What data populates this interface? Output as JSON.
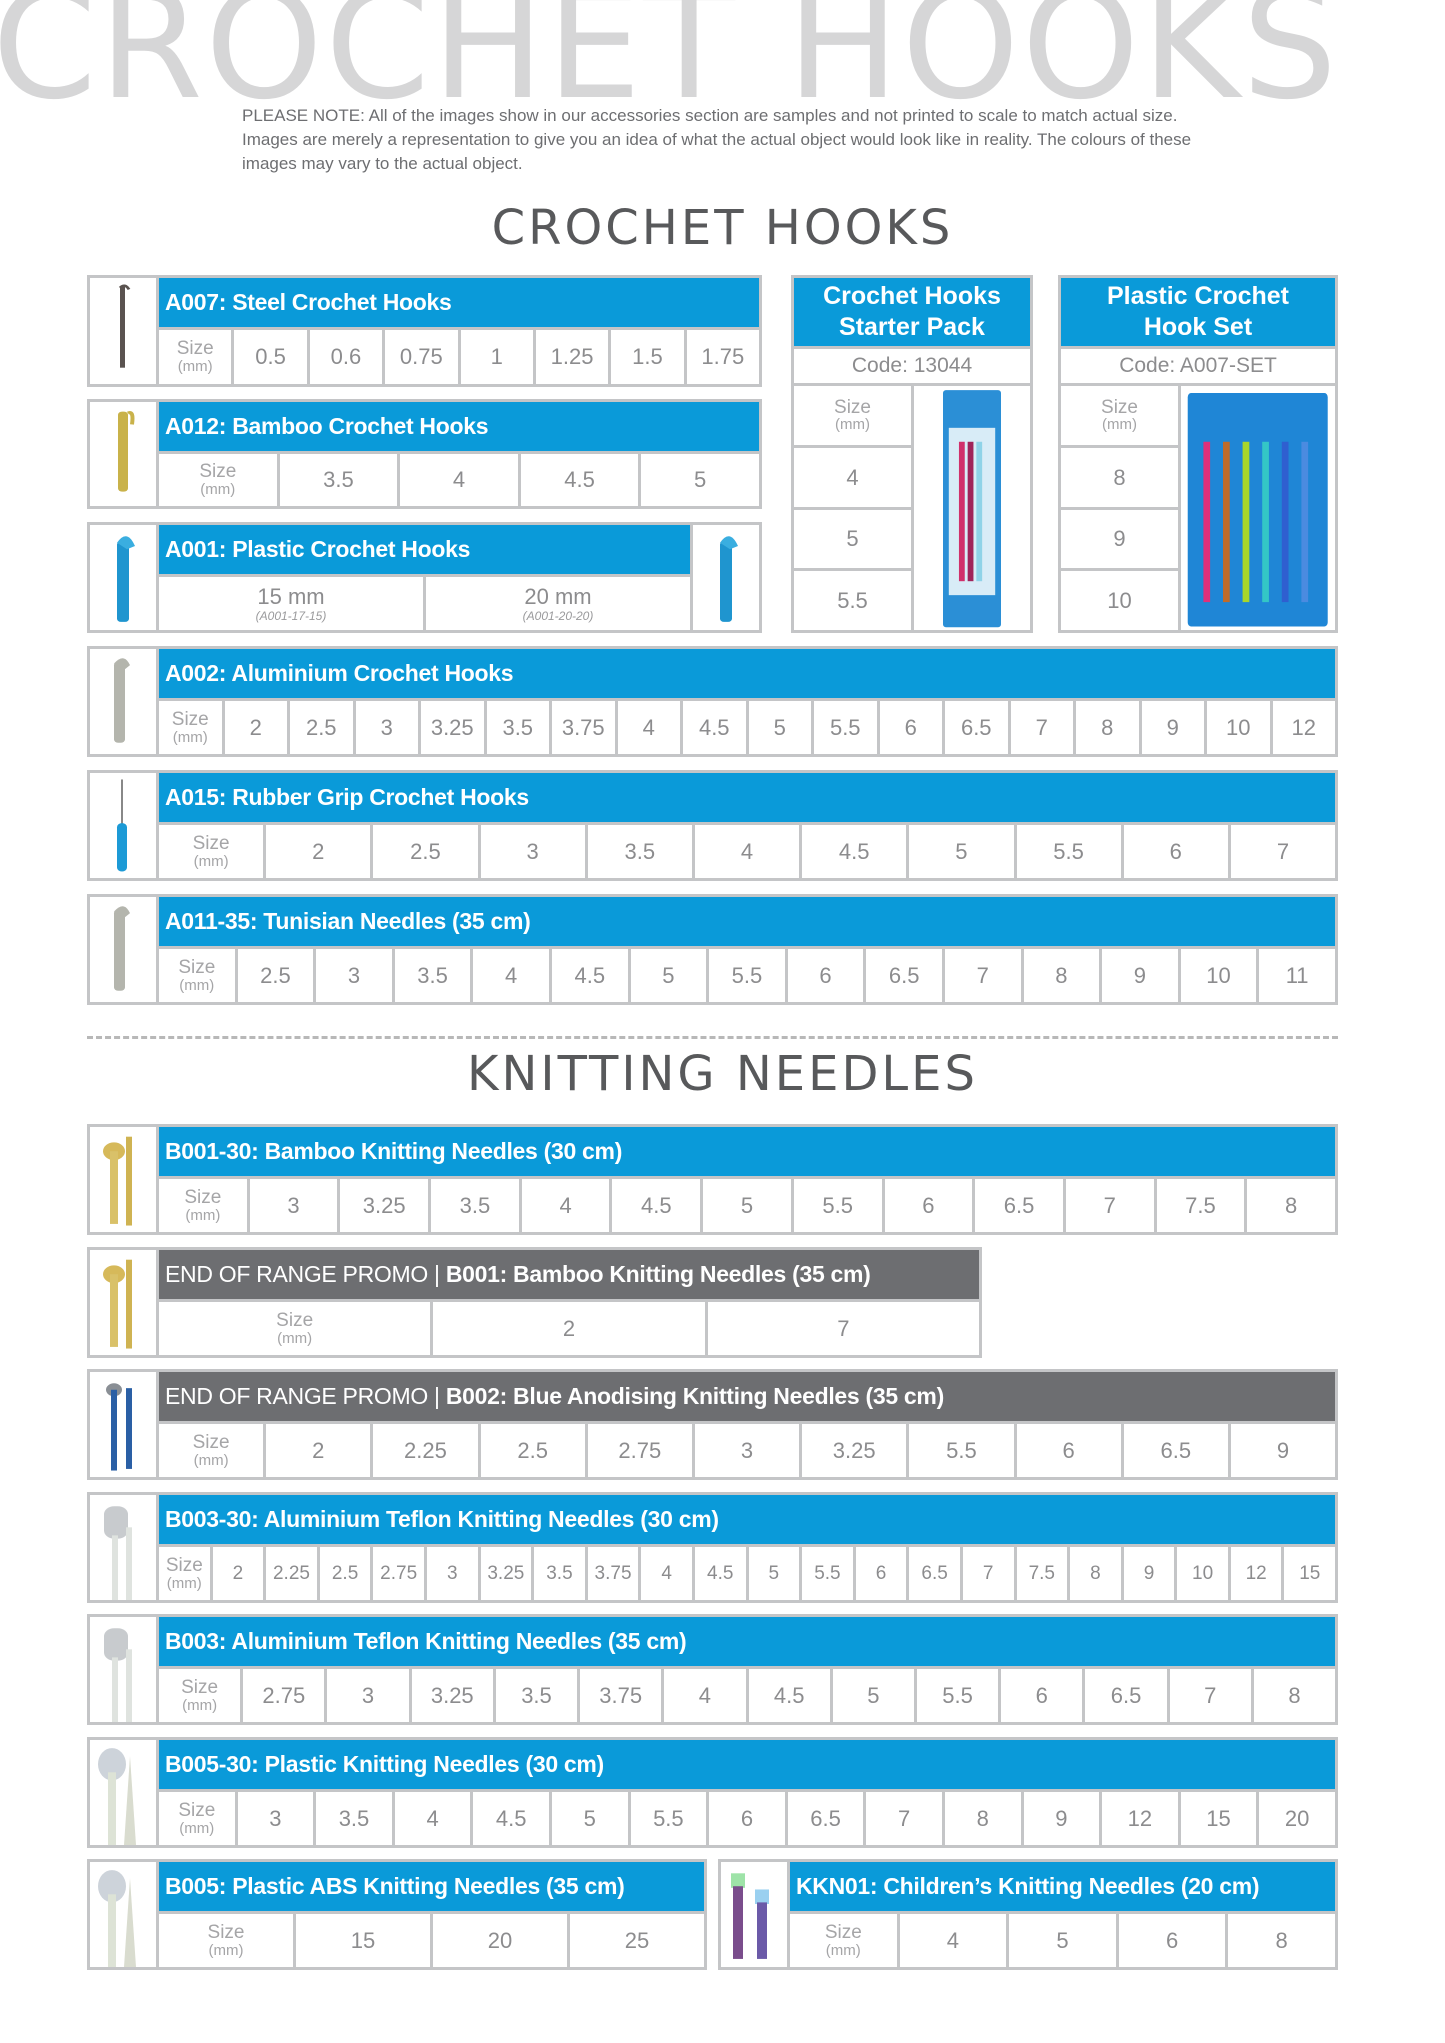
{
  "watermark": "CROCHET HOOKS",
  "note": "PLEASE NOTE: All of the images show in our accessories section are samples and not printed to scale to match actual size. Images are merely a representation to give you an idea of what the actual object would look like in reality. The colours of these images may vary to the actual object.",
  "crochet_title": "CROCHET HOOKS",
  "knitting_title": "KNITTING NEEDLES",
  "size_label": "Size",
  "unit_label": "(mm)",
  "colors": {
    "header_blue": "#0a9ad9",
    "promo_grey": "#6d6e71",
    "border": "#c4c5c7",
    "text_grey": "#8c8c8e"
  },
  "panels": [
    {
      "title": "A007: Steel Crochet Hooks",
      "image": "steel-crochet-hook-icon",
      "sizes": [
        "0.5",
        "0.6",
        "0.75",
        "1",
        "1.25",
        "1.5",
        "1.75"
      ]
    },
    {
      "title": "A012: Bamboo Crochet Hooks",
      "image": "bamboo-crochet-hook-icon",
      "sizes": [
        "3.5",
        "4",
        "4.5",
        "5"
      ]
    },
    {
      "title": "A001: Plastic Crochet Hooks",
      "image": "plastic-crochet-hook-icon",
      "options": [
        {
          "size": "15 mm",
          "code": "(A001-17-15)"
        },
        {
          "size": "20 mm",
          "code": "(A001-20-20)"
        }
      ]
    },
    {
      "title": "A002: Aluminium Crochet Hooks",
      "image": "aluminium-crochet-hook-icon",
      "sizes": [
        "2",
        "2.5",
        "3",
        "3.25",
        "3.5",
        "3.75",
        "4",
        "4.5",
        "5",
        "5.5",
        "6",
        "6.5",
        "7",
        "8",
        "9",
        "10",
        "12"
      ]
    },
    {
      "title": "A015: Rubber Grip Crochet Hooks",
      "image": "rubber-grip-crochet-hook-icon",
      "sizes": [
        "2",
        "2.5",
        "3",
        "3.5",
        "4",
        "4.5",
        "5",
        "5.5",
        "6",
        "7"
      ]
    },
    {
      "title": "A011-35: Tunisian Needles (35 cm)",
      "image": "tunisian-needle-icon",
      "sizes": [
        "2.5",
        "3",
        "3.5",
        "4",
        "4.5",
        "5",
        "5.5",
        "6",
        "6.5",
        "7",
        "8",
        "9",
        "10",
        "11"
      ]
    },
    {
      "title": "B001-30: Bamboo Knitting Needles (30 cm)",
      "image": "bamboo-knitting-needle-icon",
      "sizes": [
        "3",
        "3.25",
        "3.5",
        "4",
        "4.5",
        "5",
        "5.5",
        "6",
        "6.5",
        "7",
        "7.5",
        "8"
      ]
    },
    {
      "promo": "END OF RANGE PROMO | ",
      "title": "B001: Bamboo Knitting Needles (35 cm)",
      "image": "bamboo-knitting-needle-icon",
      "sizes": [
        "2",
        "7"
      ]
    },
    {
      "promo": "END OF RANGE PROMO | ",
      "title": "B002: Blue Anodising Knitting Needles (35 cm)",
      "image": "blue-knitting-needle-icon",
      "sizes": [
        "2",
        "2.25",
        "2.5",
        "2.75",
        "3",
        "3.25",
        "5.5",
        "6",
        "6.5",
        "9"
      ]
    },
    {
      "title": "B003-30: Aluminium Teflon Knitting Needles (30 cm)",
      "image": "teflon-knitting-needle-icon",
      "sizes": [
        "2",
        "2.25",
        "2.5",
        "2.75",
        "3",
        "3.25",
        "3.5",
        "3.75",
        "4",
        "4.5",
        "5",
        "5.5",
        "6",
        "6.5",
        "7",
        "7.5",
        "8",
        "9",
        "10",
        "12",
        "15"
      ]
    },
    {
      "title": "B003: Aluminium Teflon Knitting Needles (35 cm)",
      "image": "teflon-knitting-needle-icon",
      "sizes": [
        "2.75",
        "3",
        "3.25",
        "3.5",
        "3.75",
        "4",
        "4.5",
        "5",
        "5.5",
        "6",
        "6.5",
        "7",
        "8"
      ]
    },
    {
      "title": "B005-30: Plastic Knitting Needles (30 cm)",
      "image": "plastic-knitting-needle-icon",
      "sizes": [
        "3",
        "3.5",
        "4",
        "4.5",
        "5",
        "5.5",
        "6",
        "6.5",
        "7",
        "8",
        "9",
        "12",
        "15",
        "20"
      ]
    },
    {
      "title": "B005: Plastic ABS Knitting Needles (35 cm)",
      "image": "plastic-knitting-needle-icon",
      "sizes": [
        "15",
        "20",
        "25"
      ]
    },
    {
      "title": "KKN01: Children’s Knitting Needles (20 cm)",
      "image": "childrens-knitting-needle-icon",
      "sizes": [
        "4",
        "5",
        "6",
        "8"
      ]
    }
  ],
  "packs": [
    {
      "title": "Crochet Hooks Starter Pack",
      "code": "Code: 13044",
      "sizes": [
        "4",
        "5",
        "5.5"
      ],
      "image": "starter-pack-icon"
    },
    {
      "title": "Plastic Crochet Hook Set",
      "code": "Code: A007-SET",
      "sizes": [
        "8",
        "9",
        "10"
      ],
      "image": "hook-set-icon"
    }
  ]
}
